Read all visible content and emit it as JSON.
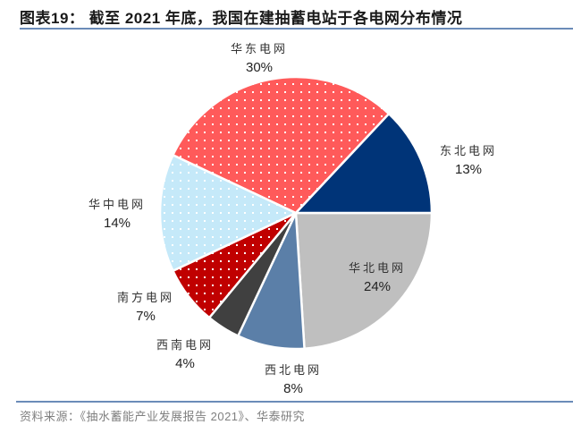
{
  "header": {
    "title": "图表19： 截至 2021 年底，我国在建抽蓄电站于各电网分布情况"
  },
  "footer": {
    "source": "资料来源：《抽水蓄能产业发展报告 2021》、华泰研究"
  },
  "chart_data": {
    "type": "pie",
    "title": "截至 2021 年底，我国在建抽蓄电站于各电网分布情况",
    "categories": [
      "华北电网",
      "西北电网",
      "西南电网",
      "南方电网",
      "华中电网",
      "华东电网",
      "东北电网"
    ],
    "values": [
      24,
      8,
      4,
      7,
      14,
      30,
      13
    ],
    "unit": "%",
    "colors": [
      "#bfbfbf",
      "#5b7fa8",
      "#404040",
      "#c00000",
      "#c5e9f9",
      "#ff5a5a",
      "#003478"
    ],
    "patterns": [
      "solid",
      "solid",
      "solid",
      "dots",
      "dots",
      "dots",
      "solid"
    ],
    "start_angle": "3 o'clock, clockwise",
    "legend": "none (data labels outside/inside slices)"
  },
  "labels": {
    "huabei": {
      "name": "华北电网",
      "pct": "24%"
    },
    "xibei": {
      "name": "西北电网",
      "pct": "8%"
    },
    "xinan": {
      "name": "西南电网",
      "pct": "4%"
    },
    "nanfang": {
      "name": "南方电网",
      "pct": "7%"
    },
    "huazhong": {
      "name": "华中电网",
      "pct": "14%"
    },
    "huadong": {
      "name": "华东电网",
      "pct": "30%"
    },
    "dongbei": {
      "name": "东北电网",
      "pct": "13%"
    }
  }
}
